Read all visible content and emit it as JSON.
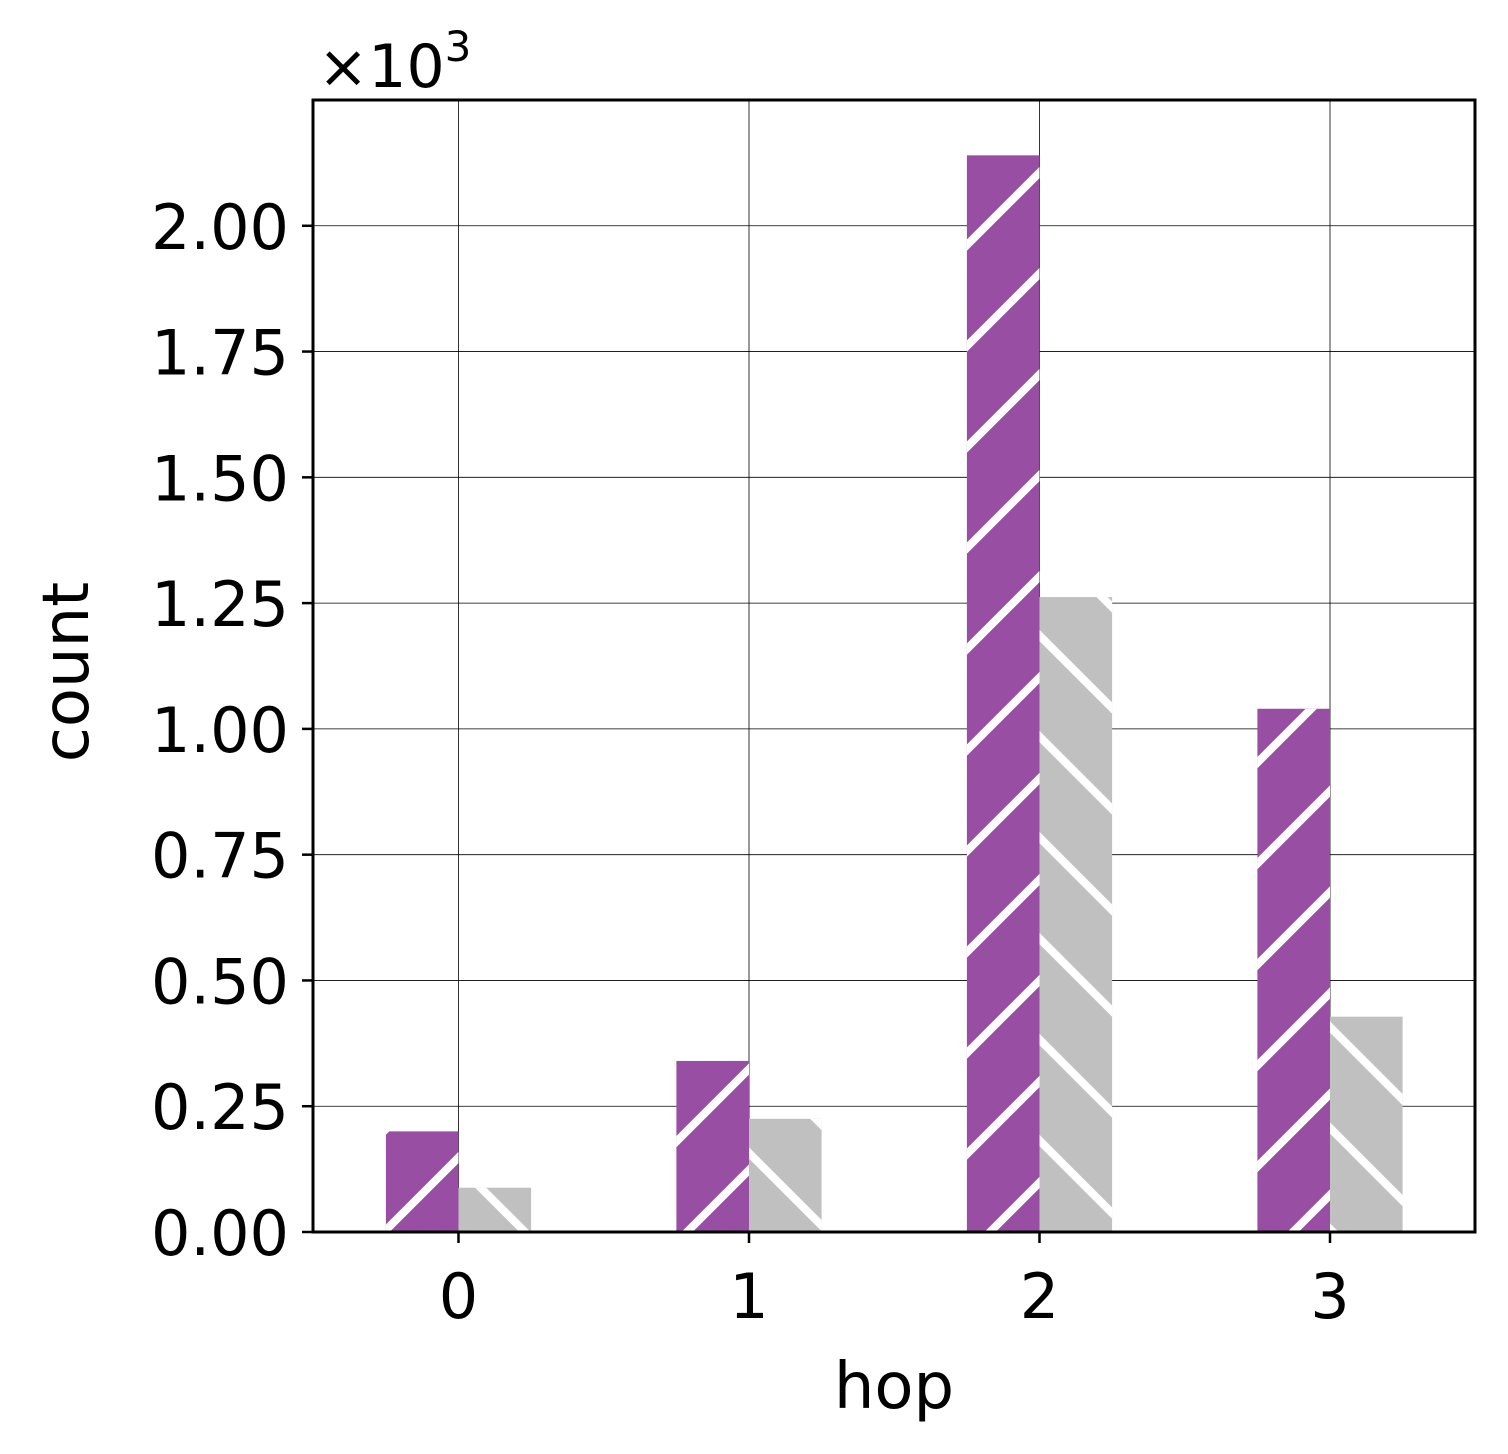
{
  "chart_data": {
    "type": "bar",
    "categories": [
      "0",
      "1",
      "2",
      "3"
    ],
    "series": [
      {
        "values": [
          200,
          340,
          2140,
          1040
        ],
        "color": "#984ea3",
        "hatch": "forward-diagonal"
      },
      {
        "values": [
          88,
          225,
          1262,
          428
        ],
        "color": "#c0c0c0",
        "hatch": "back-diagonal"
      }
    ],
    "xlabel": "hop",
    "ylabel": "count",
    "y_offset_label": {
      "prefix": "×10",
      "exponent": "3"
    },
    "ylim": [
      0,
      2250
    ],
    "yticks": [
      0,
      250,
      500,
      750,
      1000,
      1250,
      1500,
      1750,
      2000
    ],
    "ytick_labels": [
      "0.00",
      "0.25",
      "0.50",
      "0.75",
      "1.00",
      "1.25",
      "1.50",
      "1.75",
      "2.00"
    ],
    "xtick_labels": [
      "0",
      "1",
      "2",
      "3"
    ],
    "grid": true
  }
}
